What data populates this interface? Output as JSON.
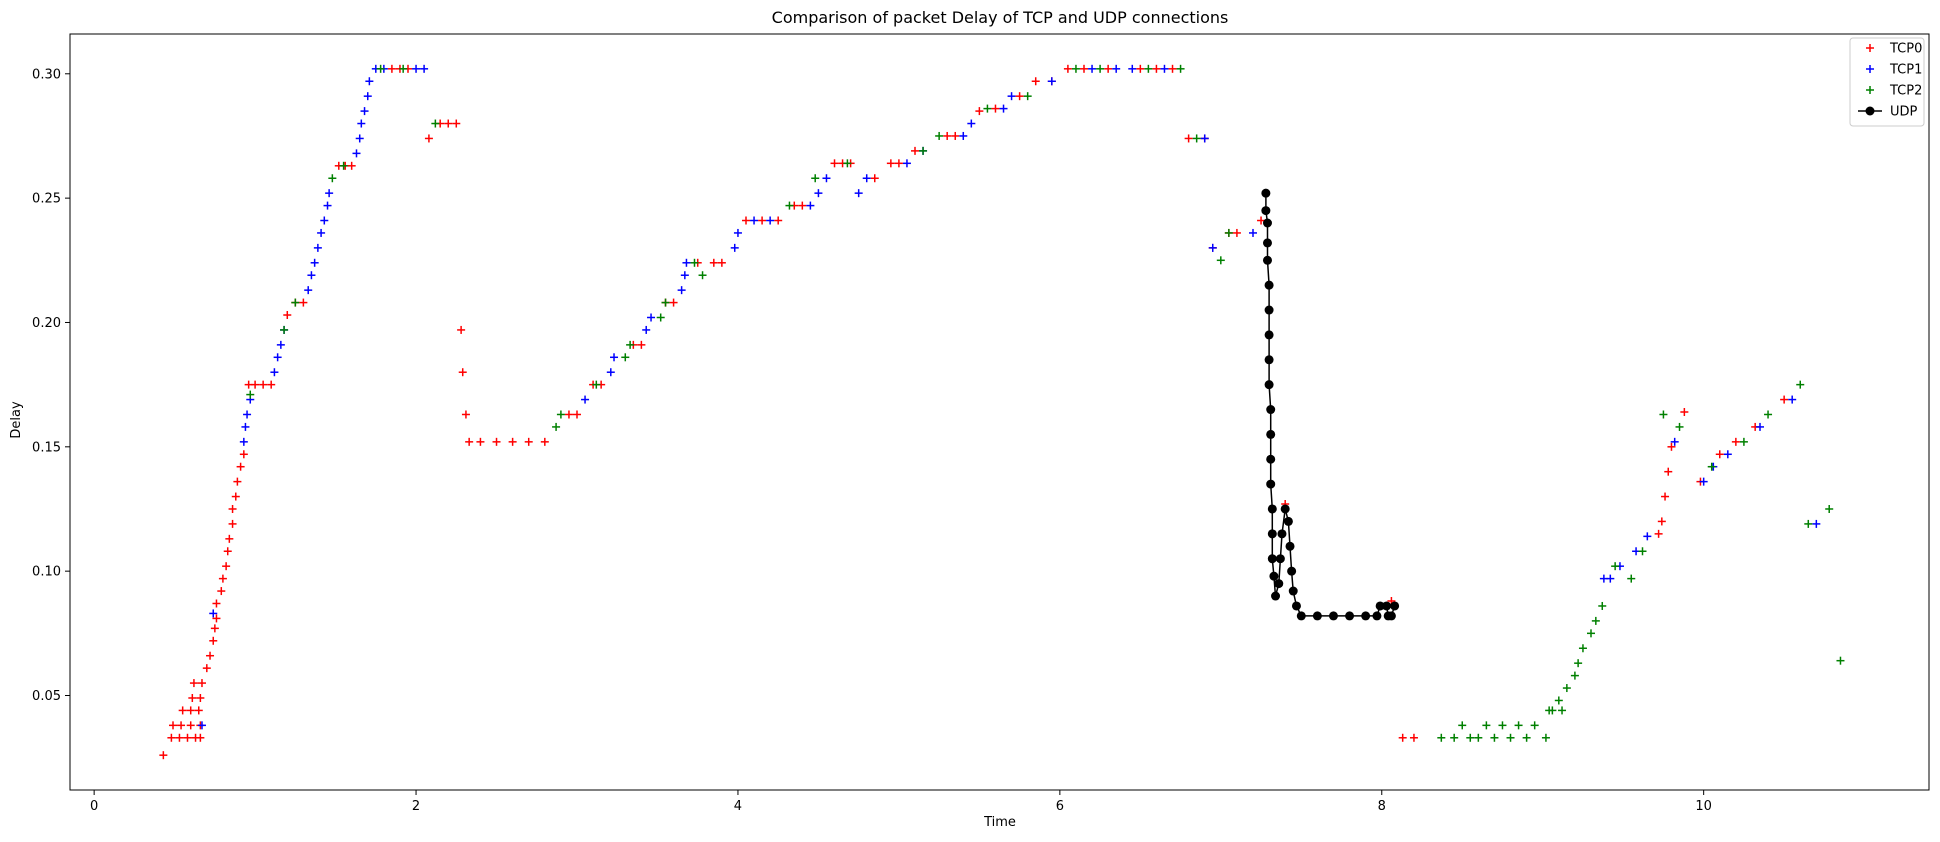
{
  "chart_data": {
    "type": "scatter",
    "title": "Comparison of packet Delay of TCP and UDP connections",
    "xlabel": "Time",
    "ylabel": "Delay",
    "xlim": [
      -0.15,
      11.4
    ],
    "ylim": [
      0.012,
      0.316
    ],
    "xticks": [
      0,
      2,
      4,
      6,
      8,
      10
    ],
    "yticks": [
      0.05,
      0.1,
      0.15,
      0.2,
      0.25,
      0.3
    ],
    "ytick_labels": [
      "0.05",
      "0.10",
      "0.15",
      "0.20",
      "0.25",
      "0.30"
    ],
    "grid": false,
    "legend_position": "top-right",
    "series": [
      {
        "name": "TCP0",
        "color": "#ff0000",
        "marker": "plus",
        "line": false,
        "points": [
          [
            0.43,
            0.026
          ],
          [
            0.48,
            0.033
          ],
          [
            0.53,
            0.033
          ],
          [
            0.58,
            0.033
          ],
          [
            0.63,
            0.033
          ],
          [
            0.66,
            0.033
          ],
          [
            0.49,
            0.038
          ],
          [
            0.54,
            0.038
          ],
          [
            0.6,
            0.038
          ],
          [
            0.66,
            0.038
          ],
          [
            0.55,
            0.044
          ],
          [
            0.6,
            0.044
          ],
          [
            0.65,
            0.044
          ],
          [
            0.61,
            0.049
          ],
          [
            0.66,
            0.049
          ],
          [
            0.62,
            0.055
          ],
          [
            0.67,
            0.055
          ],
          [
            0.7,
            0.061
          ],
          [
            0.72,
            0.066
          ],
          [
            0.74,
            0.072
          ],
          [
            0.75,
            0.077
          ],
          [
            0.76,
            0.081
          ],
          [
            0.76,
            0.087
          ],
          [
            0.79,
            0.092
          ],
          [
            0.8,
            0.097
          ],
          [
            0.82,
            0.102
          ],
          [
            0.83,
            0.108
          ],
          [
            0.84,
            0.113
          ],
          [
            0.86,
            0.119
          ],
          [
            0.86,
            0.125
          ],
          [
            0.88,
            0.13
          ],
          [
            0.89,
            0.136
          ],
          [
            0.91,
            0.142
          ],
          [
            0.93,
            0.147
          ],
          [
            0.96,
            0.175
          ],
          [
            1.0,
            0.175
          ],
          [
            1.05,
            0.175
          ],
          [
            1.1,
            0.175
          ],
          [
            1.2,
            0.203
          ],
          [
            1.25,
            0.208
          ],
          [
            1.3,
            0.208
          ],
          [
            1.52,
            0.263
          ],
          [
            1.56,
            0.263
          ],
          [
            1.6,
            0.263
          ],
          [
            1.85,
            0.302
          ],
          [
            1.9,
            0.302
          ],
          [
            1.95,
            0.302
          ],
          [
            2.08,
            0.274
          ],
          [
            2.15,
            0.28
          ],
          [
            2.2,
            0.28
          ],
          [
            2.25,
            0.28
          ],
          [
            2.28,
            0.197
          ],
          [
            2.29,
            0.18
          ],
          [
            2.31,
            0.163
          ],
          [
            2.33,
            0.152
          ],
          [
            2.4,
            0.152
          ],
          [
            2.5,
            0.152
          ],
          [
            2.6,
            0.152
          ],
          [
            2.7,
            0.152
          ],
          [
            2.8,
            0.152
          ],
          [
            2.95,
            0.163
          ],
          [
            3.0,
            0.163
          ],
          [
            3.1,
            0.175
          ],
          [
            3.15,
            0.175
          ],
          [
            3.35,
            0.191
          ],
          [
            3.4,
            0.191
          ],
          [
            3.55,
            0.208
          ],
          [
            3.6,
            0.208
          ],
          [
            3.75,
            0.224
          ],
          [
            3.85,
            0.224
          ],
          [
            3.9,
            0.224
          ],
          [
            4.05,
            0.241
          ],
          [
            4.15,
            0.241
          ],
          [
            4.25,
            0.241
          ],
          [
            4.35,
            0.247
          ],
          [
            4.4,
            0.247
          ],
          [
            4.6,
            0.264
          ],
          [
            4.65,
            0.264
          ],
          [
            4.7,
            0.264
          ],
          [
            4.85,
            0.258
          ],
          [
            4.95,
            0.264
          ],
          [
            5.0,
            0.264
          ],
          [
            5.1,
            0.269
          ],
          [
            5.3,
            0.275
          ],
          [
            5.35,
            0.275
          ],
          [
            5.5,
            0.285
          ],
          [
            5.6,
            0.286
          ],
          [
            5.75,
            0.291
          ],
          [
            5.85,
            0.297
          ],
          [
            5.95,
            0.297
          ],
          [
            6.05,
            0.302
          ],
          [
            6.15,
            0.302
          ],
          [
            6.3,
            0.302
          ],
          [
            6.5,
            0.302
          ],
          [
            6.6,
            0.302
          ],
          [
            6.7,
            0.302
          ],
          [
            6.8,
            0.274
          ],
          [
            6.9,
            0.274
          ],
          [
            6.95,
            0.23
          ],
          [
            7.05,
            0.236
          ],
          [
            7.1,
            0.236
          ],
          [
            7.25,
            0.241
          ],
          [
            7.28,
            0.252
          ],
          [
            7.4,
            0.127
          ],
          [
            8.06,
            0.088
          ],
          [
            8.13,
            0.033
          ],
          [
            8.2,
            0.033
          ],
          [
            9.72,
            0.115
          ],
          [
            9.74,
            0.12
          ],
          [
            9.76,
            0.13
          ],
          [
            9.78,
            0.14
          ],
          [
            9.8,
            0.15
          ],
          [
            9.88,
            0.164
          ],
          [
            9.98,
            0.136
          ],
          [
            10.1,
            0.147
          ],
          [
            10.2,
            0.152
          ],
          [
            10.32,
            0.158
          ],
          [
            10.5,
            0.169
          ]
        ]
      },
      {
        "name": "TCP1",
        "color": "#0000ff",
        "marker": "plus",
        "line": false,
        "points": [
          [
            0.67,
            0.038
          ],
          [
            0.74,
            0.083
          ],
          [
            0.93,
            0.152
          ],
          [
            0.94,
            0.158
          ],
          [
            0.95,
            0.163
          ],
          [
            0.97,
            0.169
          ],
          [
            1.12,
            0.18
          ],
          [
            1.14,
            0.186
          ],
          [
            1.16,
            0.191
          ],
          [
            1.18,
            0.197
          ],
          [
            1.33,
            0.213
          ],
          [
            1.35,
            0.219
          ],
          [
            1.37,
            0.224
          ],
          [
            1.39,
            0.23
          ],
          [
            1.41,
            0.236
          ],
          [
            1.43,
            0.241
          ],
          [
            1.45,
            0.247
          ],
          [
            1.46,
            0.252
          ],
          [
            1.63,
            0.268
          ],
          [
            1.65,
            0.274
          ],
          [
            1.66,
            0.28
          ],
          [
            1.68,
            0.285
          ],
          [
            1.7,
            0.291
          ],
          [
            1.71,
            0.297
          ],
          [
            1.75,
            0.302
          ],
          [
            1.8,
            0.302
          ],
          [
            2.0,
            0.302
          ],
          [
            2.05,
            0.302
          ],
          [
            3.05,
            0.169
          ],
          [
            3.21,
            0.18
          ],
          [
            3.23,
            0.186
          ],
          [
            3.43,
            0.197
          ],
          [
            3.46,
            0.202
          ],
          [
            3.65,
            0.213
          ],
          [
            3.67,
            0.219
          ],
          [
            3.68,
            0.224
          ],
          [
            3.98,
            0.23
          ],
          [
            4.0,
            0.236
          ],
          [
            4.1,
            0.241
          ],
          [
            4.2,
            0.241
          ],
          [
            4.45,
            0.247
          ],
          [
            4.5,
            0.252
          ],
          [
            4.55,
            0.258
          ],
          [
            4.75,
            0.252
          ],
          [
            4.8,
            0.258
          ],
          [
            5.05,
            0.264
          ],
          [
            5.15,
            0.269
          ],
          [
            5.4,
            0.275
          ],
          [
            5.45,
            0.28
          ],
          [
            5.65,
            0.286
          ],
          [
            5.7,
            0.291
          ],
          [
            5.95,
            0.297
          ],
          [
            6.2,
            0.302
          ],
          [
            6.35,
            0.302
          ],
          [
            6.45,
            0.302
          ],
          [
            6.65,
            0.302
          ],
          [
            6.9,
            0.274
          ],
          [
            6.95,
            0.23
          ],
          [
            7.2,
            0.236
          ],
          [
            9.38,
            0.097
          ],
          [
            9.42,
            0.097
          ],
          [
            9.48,
            0.102
          ],
          [
            9.58,
            0.108
          ],
          [
            9.65,
            0.114
          ],
          [
            9.82,
            0.152
          ],
          [
            10.0,
            0.136
          ],
          [
            10.06,
            0.142
          ],
          [
            10.15,
            0.147
          ],
          [
            10.35,
            0.158
          ],
          [
            10.55,
            0.169
          ],
          [
            10.7,
            0.119
          ]
        ]
      },
      {
        "name": "TCP2",
        "color": "#008000",
        "marker": "plus",
        "line": false,
        "points": [
          [
            0.97,
            0.171
          ],
          [
            1.18,
            0.197
          ],
          [
            1.25,
            0.208
          ],
          [
            1.48,
            0.258
          ],
          [
            1.55,
            0.263
          ],
          [
            1.78,
            0.302
          ],
          [
            1.92,
            0.302
          ],
          [
            2.12,
            0.28
          ],
          [
            2.87,
            0.158
          ],
          [
            2.9,
            0.163
          ],
          [
            3.12,
            0.175
          ],
          [
            3.3,
            0.186
          ],
          [
            3.33,
            0.191
          ],
          [
            3.52,
            0.202
          ],
          [
            3.55,
            0.208
          ],
          [
            3.73,
            0.224
          ],
          [
            3.78,
            0.219
          ],
          [
            4.32,
            0.247
          ],
          [
            4.48,
            0.258
          ],
          [
            4.68,
            0.264
          ],
          [
            5.15,
            0.269
          ],
          [
            5.25,
            0.275
          ],
          [
            5.55,
            0.286
          ],
          [
            5.8,
            0.291
          ],
          [
            6.1,
            0.302
          ],
          [
            6.25,
            0.302
          ],
          [
            6.55,
            0.302
          ],
          [
            6.75,
            0.302
          ],
          [
            6.85,
            0.274
          ],
          [
            7.0,
            0.225
          ],
          [
            7.05,
            0.236
          ],
          [
            8.37,
            0.033
          ],
          [
            8.45,
            0.033
          ],
          [
            8.5,
            0.038
          ],
          [
            8.55,
            0.033
          ],
          [
            8.6,
            0.033
          ],
          [
            8.65,
            0.038
          ],
          [
            8.7,
            0.033
          ],
          [
            8.75,
            0.038
          ],
          [
            8.8,
            0.033
          ],
          [
            8.85,
            0.038
          ],
          [
            8.9,
            0.033
          ],
          [
            8.95,
            0.038
          ],
          [
            9.02,
            0.033
          ],
          [
            9.04,
            0.044
          ],
          [
            9.06,
            0.044
          ],
          [
            9.1,
            0.048
          ],
          [
            9.12,
            0.044
          ],
          [
            9.15,
            0.053
          ],
          [
            9.2,
            0.058
          ],
          [
            9.22,
            0.063
          ],
          [
            9.25,
            0.069
          ],
          [
            9.3,
            0.075
          ],
          [
            9.33,
            0.08
          ],
          [
            9.37,
            0.086
          ],
          [
            9.45,
            0.102
          ],
          [
            9.55,
            0.097
          ],
          [
            9.62,
            0.108
          ],
          [
            9.75,
            0.163
          ],
          [
            9.85,
            0.158
          ],
          [
            10.05,
            0.142
          ],
          [
            10.25,
            0.152
          ],
          [
            10.4,
            0.163
          ],
          [
            10.6,
            0.175
          ],
          [
            10.65,
            0.119
          ],
          [
            10.78,
            0.125
          ],
          [
            10.85,
            0.064
          ]
        ]
      },
      {
        "name": "UDP",
        "color": "#000000",
        "marker": "circle",
        "line": true,
        "points": [
          [
            7.28,
            0.252
          ],
          [
            7.28,
            0.245
          ],
          [
            7.29,
            0.24
          ],
          [
            7.29,
            0.232
          ],
          [
            7.29,
            0.225
          ],
          [
            7.3,
            0.215
          ],
          [
            7.3,
            0.205
          ],
          [
            7.3,
            0.195
          ],
          [
            7.3,
            0.185
          ],
          [
            7.3,
            0.175
          ],
          [
            7.31,
            0.165
          ],
          [
            7.31,
            0.155
          ],
          [
            7.31,
            0.145
          ],
          [
            7.31,
            0.135
          ],
          [
            7.32,
            0.125
          ],
          [
            7.32,
            0.115
          ],
          [
            7.32,
            0.105
          ],
          [
            7.33,
            0.098
          ],
          [
            7.34,
            0.09
          ],
          [
            7.36,
            0.095
          ],
          [
            7.37,
            0.105
          ],
          [
            7.38,
            0.115
          ],
          [
            7.4,
            0.125
          ],
          [
            7.42,
            0.12
          ],
          [
            7.43,
            0.11
          ],
          [
            7.44,
            0.1
          ],
          [
            7.45,
            0.092
          ],
          [
            7.47,
            0.086
          ],
          [
            7.5,
            0.082
          ],
          [
            7.6,
            0.082
          ],
          [
            7.7,
            0.082
          ],
          [
            7.8,
            0.082
          ],
          [
            7.9,
            0.082
          ],
          [
            7.97,
            0.082
          ],
          [
            7.99,
            0.086
          ],
          [
            8.03,
            0.086
          ],
          [
            8.04,
            0.082
          ],
          [
            8.06,
            0.082
          ],
          [
            8.08,
            0.086
          ]
        ]
      }
    ]
  }
}
